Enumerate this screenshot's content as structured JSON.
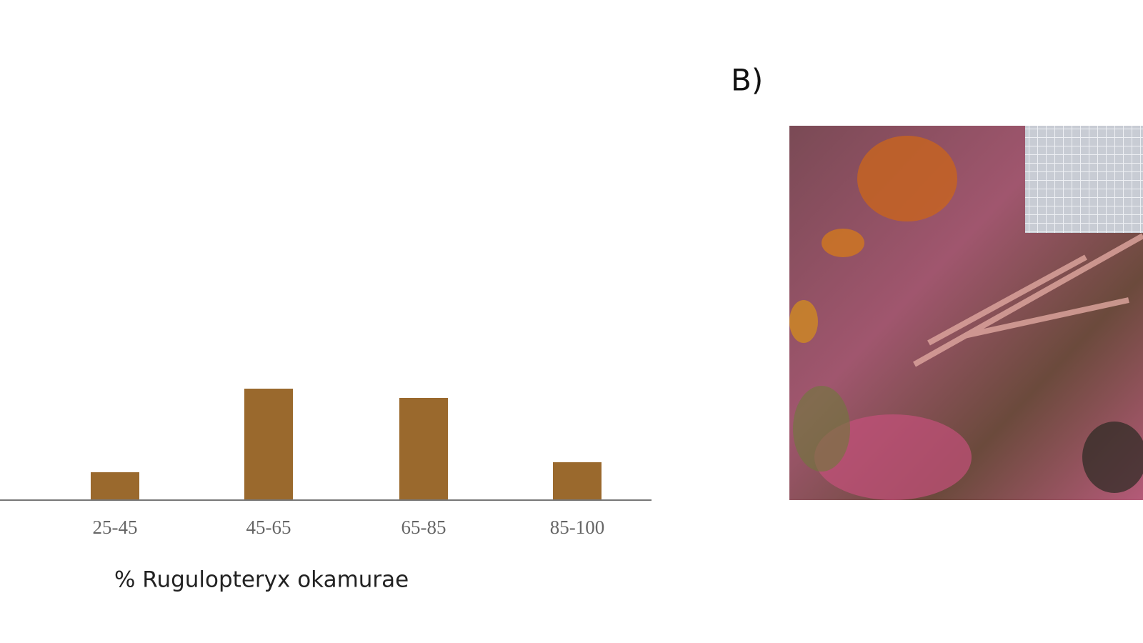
{
  "chart_data": {
    "type": "bar",
    "x_label": "% Rugulopteryx okamurae",
    "categories": [
      "25-45",
      "45-65",
      "65-85",
      "85-100"
    ],
    "values": [
      39,
      156,
      143,
      53
    ],
    "color": "#9a692d",
    "ylim": [
      0,
      700
    ]
  },
  "panel_label": "B)"
}
